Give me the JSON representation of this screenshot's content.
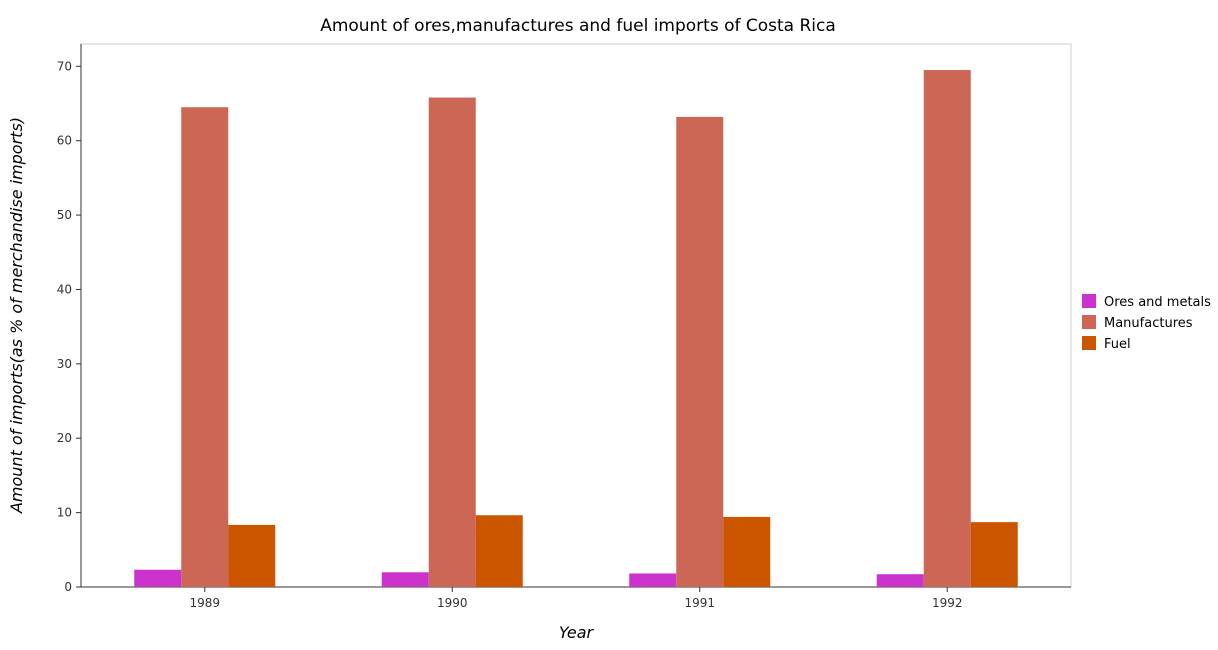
{
  "chart_data": {
    "type": "bar",
    "title": "Amount of ores,manufactures and fuel imports of Costa Rica",
    "xlabel": "Year",
    "ylabel": "Amount of imports(as % of merchandise imports)",
    "categories": [
      "1989",
      "1990",
      "1991",
      "1992"
    ],
    "ylim": [
      0,
      73
    ],
    "yticks": [
      0,
      10,
      20,
      30,
      40,
      50,
      60,
      70
    ],
    "grid": false,
    "legend_position": "right",
    "series": [
      {
        "name": "Ores and metals",
        "color": "#cc33cc",
        "values": [
          2.32,
          1.98,
          1.82,
          1.72
        ]
      },
      {
        "name": "Manufactures",
        "color": "#cc6655",
        "values": [
          64.5,
          65.8,
          63.2,
          69.5
        ]
      },
      {
        "name": "Fuel",
        "color": "#cc5500",
        "values": [
          8.35,
          9.65,
          9.42,
          8.72
        ]
      }
    ]
  }
}
